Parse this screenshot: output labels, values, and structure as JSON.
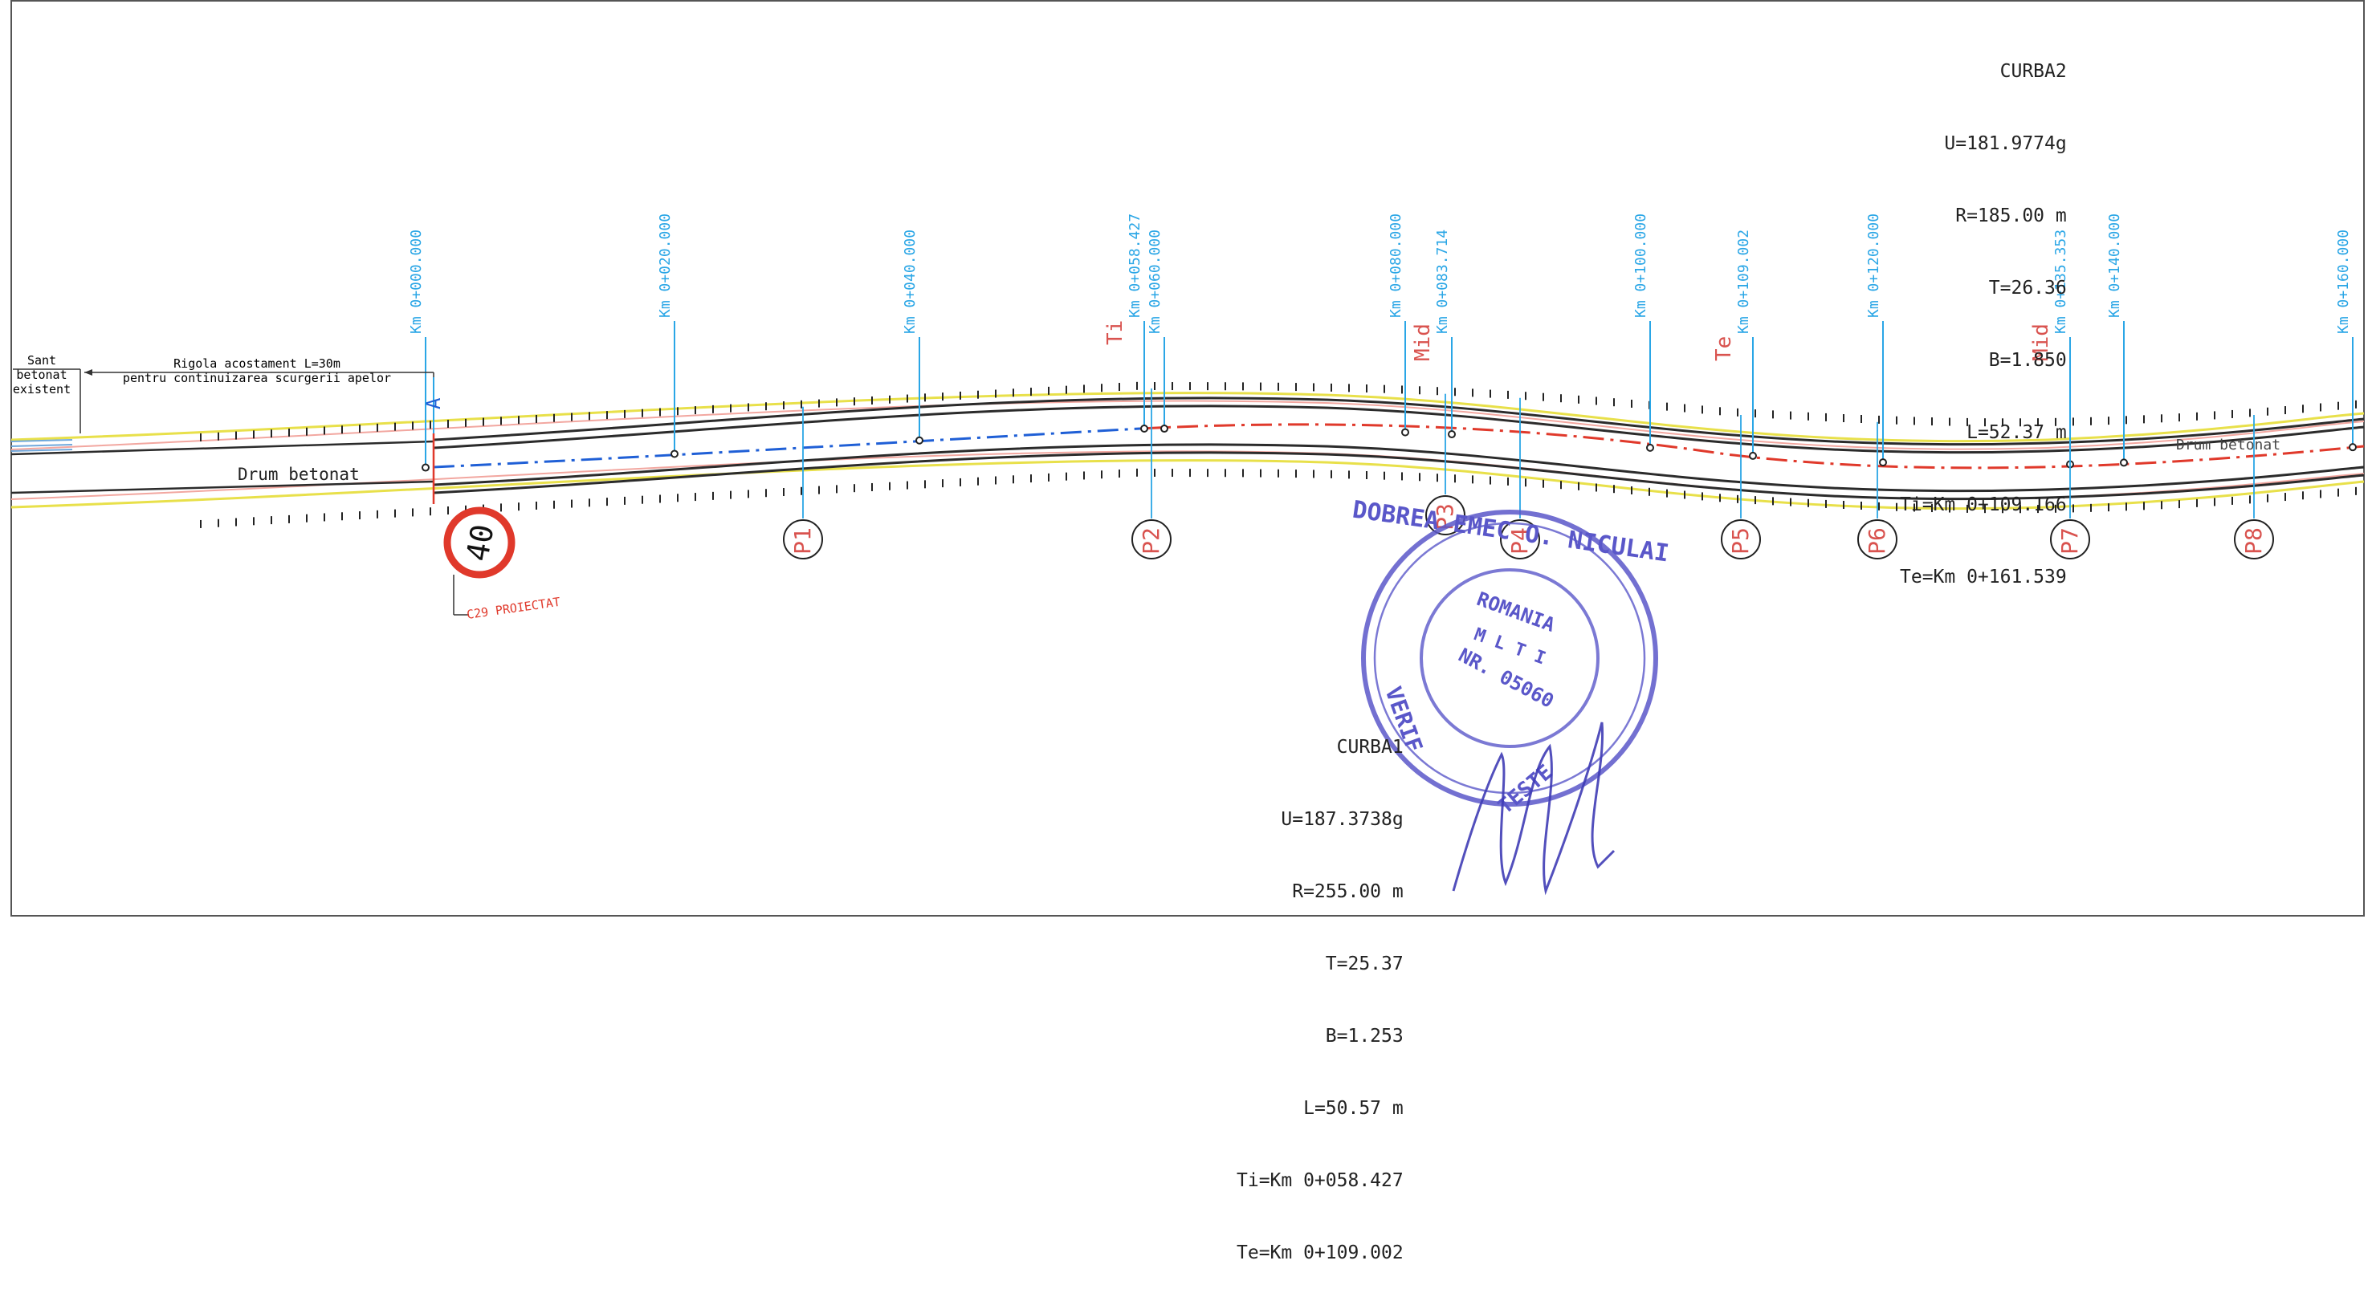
{
  "sheet": {
    "existing_ditch": [
      "Sant",
      "betonat",
      "existent"
    ],
    "gutter_note": [
      "Rigola acostament L=30m",
      "pentru continuizarea scurgerii apelor"
    ],
    "road_label": "Drum betonat",
    "road_label_right": "Drum betonat",
    "speed_sign_value": "40",
    "speed_sign_label": "C29 PROIECTAT",
    "start_marker": "A"
  },
  "chainages": [
    {
      "label": "Km 0+000.000"
    },
    {
      "label": "Km 0+020.000"
    },
    {
      "label": "Km 0+040.000"
    },
    {
      "label": "Km 0+058.427",
      "point": "Ti",
      "color": "#d9534f"
    },
    {
      "label": "Km 0+060.000"
    },
    {
      "label": "Km 0+080.000"
    },
    {
      "label": "Km 0+083.714",
      "point": "Mid",
      "color": "#d9534f"
    },
    {
      "label": "Km 0+100.000"
    },
    {
      "label": "Km 0+109.002",
      "point": "Te",
      "color": "#d9534f"
    },
    {
      "label": "Km 0+120.000"
    },
    {
      "label": "Km 0+135.353",
      "point": "Mid",
      "color": "#d9534f"
    },
    {
      "label": "Km 0+140.000"
    },
    {
      "label": "Km 0+160.000"
    }
  ],
  "profiles": [
    "P1",
    "P2",
    "P3",
    "P4",
    "P5",
    "P6",
    "P7",
    "P8"
  ],
  "curves": [
    {
      "name": "CURBA1",
      "U": "U=187.3738g",
      "R": "R=255.00 m",
      "T": "T=25.37",
      "B": "B=1.253",
      "L": "L=50.57 m",
      "Ti": "Ti=Km 0+058.427",
      "Te": "Te=Km 0+109.002"
    },
    {
      "name": "CURBA2",
      "U": "U=181.9774g",
      "R": "R=185.00 m",
      "T": "T=26.36",
      "B": "B=1.850",
      "L": "L=52.37 m",
      "Ti": "Ti=Km 0+109.166",
      "Te": "Te=Km 0+161.539"
    }
  ],
  "stamp": {
    "top_text": "DOBREA EMEC O. NICULAI",
    "left_text": "VERIF",
    "inner": [
      "ROMANIA",
      "M L T I",
      "NR. 05060"
    ],
    "bottom_text": "TESTE"
  },
  "colors": {
    "road_edge": "#2b2b2b",
    "axis_blue": "#1f5fd6",
    "axis_red": "#e0392b",
    "chainage_blue": "#2aa6e6",
    "profile_red": "#d9534f",
    "stamp_purple": "#5a57c9",
    "verge_yellow": "#e8e04a",
    "shoulder_pink": "#f2a7a0"
  }
}
